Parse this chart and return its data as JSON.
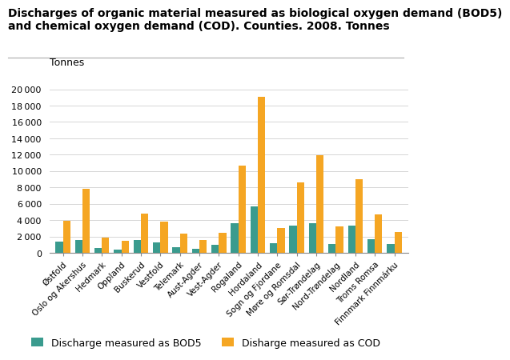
{
  "title_line1": "Discharges of organic material measured as biological oxygen demand (BOD5)",
  "title_line2": "and chemical oxygen demand (COD). Counties. 2008. Tonnes",
  "ylabel": "Tonnes",
  "categories": [
    "Østfold",
    "Oslo og Akershus",
    "Hedmark",
    "Oppland",
    "Buskerud",
    "Vestfold",
    "Telemark",
    "Aust-Agder",
    "Vest-Agder",
    "Rogaland",
    "Hordaland",
    "Sogn og Fjordane",
    "Møre og Romsdal",
    "Sør-Trøndelag",
    "Nord-Trøndelag",
    "Nordland",
    "Troms Romsa",
    "Finnmark Finnmárku"
  ],
  "bod5": [
    1400,
    1600,
    650,
    400,
    1600,
    1300,
    750,
    550,
    1000,
    3600,
    5700,
    1250,
    3350,
    3600,
    1100,
    3400,
    1700,
    1100
  ],
  "cod": [
    3900,
    7850,
    1900,
    1450,
    4800,
    3800,
    2350,
    1550,
    2450,
    10650,
    19100,
    3050,
    8650,
    11900,
    3250,
    9000,
    4700,
    2600
  ],
  "bod5_color": "#3a9b8e",
  "cod_color": "#f5a623",
  "legend_bod5": "Discharge measured as BOD5",
  "legend_cod": "Disharge measured as COD",
  "ylim": [
    0,
    21000
  ],
  "yticks": [
    0,
    2000,
    4000,
    6000,
    8000,
    10000,
    12000,
    14000,
    16000,
    18000,
    20000
  ],
  "title_fontsize": 10,
  "ylabel_fontsize": 9,
  "tick_fontsize": 8,
  "legend_fontsize": 9,
  "bar_width": 0.38
}
